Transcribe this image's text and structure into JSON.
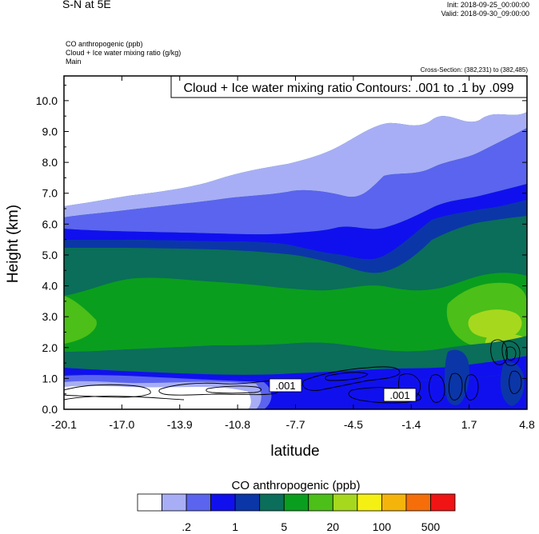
{
  "header": {
    "title": "S-N at 5E",
    "init": "Init: 2018-09-25_00:00:00",
    "valid": "Valid: 2018-09-30_09:00:00",
    "field_line1": "CO anthropogenic   (ppb)",
    "field_line2": "Cloud + Ice water mixing ratio   (g/kg)",
    "field_line3": "Main",
    "cross_section": "Cross-Section: (382,231) to (382,485)"
  },
  "contour_box": "Cloud + Ice water mixing ratio Contours: .001 to .1 by .099",
  "contour_labels": [
    ".001",
    ".001"
  ],
  "colorbar": {
    "title": "CO anthropogenic  (ppb)",
    "colors": [
      "#ffffff",
      "#a8aef5",
      "#5b64ee",
      "#1010ee",
      "#0b36a8",
      "#0a6e5a",
      "#0a9e1e",
      "#4cbf18",
      "#a6d81e",
      "#f5f014",
      "#f5b40a",
      "#f56e0a",
      "#f01414"
    ],
    "labels": [
      ".2",
      "1",
      "5",
      "20",
      "100",
      "500"
    ]
  },
  "chart_data": {
    "type": "heatmap",
    "xlabel": "latitude",
    "ylabel": "Height (km)",
    "x_ticks": [
      "-20.1",
      "-17.0",
      "-13.9",
      "-10.8",
      "-7.7",
      "-4.5",
      "-1.4",
      "1.7",
      "4.8"
    ],
    "y_ticks": [
      "0.0",
      "1.0",
      "2.0",
      "3.0",
      "4.0",
      "5.0",
      "6.0",
      "7.0",
      "8.0",
      "9.0",
      "10.0"
    ],
    "xlim": [
      -20.1,
      4.8
    ],
    "ylim": [
      0.0,
      10.8
    ],
    "color_levels": [
      ".2",
      "1",
      "5",
      "20",
      "100",
      "500"
    ]
  }
}
